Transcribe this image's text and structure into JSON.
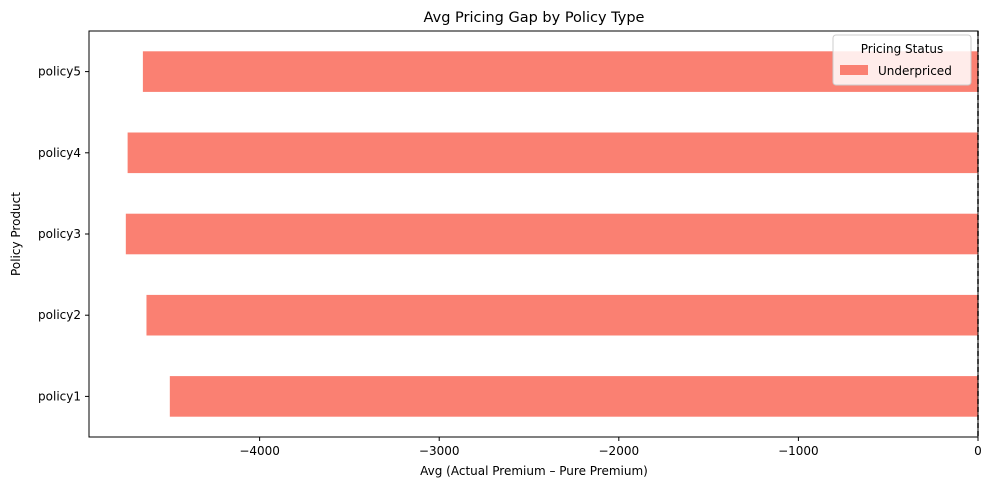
{
  "chart_data": {
    "type": "bar",
    "orientation": "horizontal",
    "title": "Avg Pricing Gap by Policy Type",
    "xlabel": "Avg (Actual Premium – Pure Premium)",
    "ylabel": "Policy Product",
    "categories": [
      "policy1",
      "policy2",
      "policy3",
      "policy4",
      "policy5"
    ],
    "series": [
      {
        "name": "Underpriced",
        "color": "#fa8072",
        "values": [
          -4500,
          -4630,
          -4745,
          -4735,
          -4650
        ]
      }
    ],
    "xlim": [
      -4950,
      0
    ],
    "xticks": [
      -4000,
      -3000,
      -2000,
      -1000,
      0
    ],
    "xtick_labels": [
      "−4000",
      "−3000",
      "−2000",
      "−1000",
      "0"
    ],
    "reference_line": {
      "x": 0,
      "style": "dashed",
      "color": "#000000"
    },
    "legend": {
      "title": "Pricing Status",
      "placement": "top-right"
    },
    "grid": false
  }
}
